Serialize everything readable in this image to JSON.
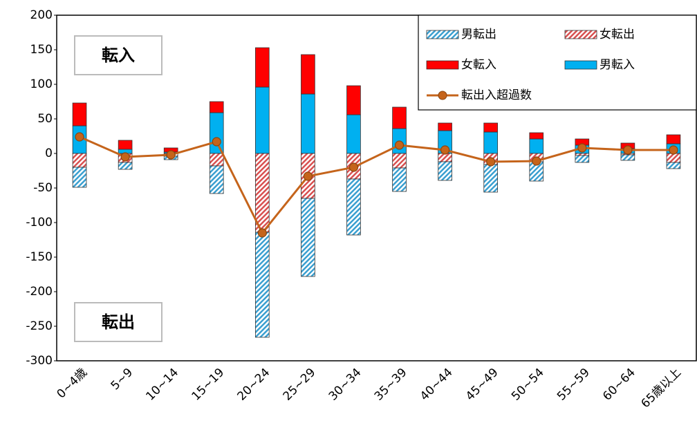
{
  "chart_data": {
    "type": "bar",
    "categories": [
      "0~4歳",
      "5~9",
      "10~14",
      "15~19",
      "20~24",
      "25~29",
      "30~34",
      "35~39",
      "40~44",
      "45~49",
      "50~54",
      "55~59",
      "60~64",
      "65歳以上"
    ],
    "series": [
      {
        "name": "男転出",
        "color": "#3a9fd0",
        "hatched": true,
        "values": [
          -29,
          -10,
          -5,
          -40,
          -152,
          -113,
          -81,
          -34,
          -27,
          -40,
          -28,
          -10,
          -8,
          -9
        ]
      },
      {
        "name": "女転出",
        "color": "#d85050",
        "hatched": true,
        "values": [
          -20,
          -13,
          -4,
          -18,
          -114,
          -65,
          -37,
          -21,
          -12,
          -16,
          -12,
          -3,
          -2,
          -13
        ]
      },
      {
        "name": "女転入",
        "color": "#ff0000",
        "values": [
          33,
          13,
          6,
          16,
          57,
          57,
          42,
          31,
          11,
          13,
          9,
          9,
          8,
          13
        ]
      },
      {
        "name": "男転入",
        "color": "#00b0f0",
        "values": [
          40,
          6,
          2,
          59,
          96,
          86,
          56,
          36,
          33,
          31,
          21,
          12,
          7,
          14
        ]
      },
      {
        "name": "転出入超過数",
        "type": "line",
        "color": "#c5641b",
        "values": [
          24,
          -5,
          -2,
          17,
          -115,
          -33,
          -20,
          12,
          5,
          -12,
          -11,
          8,
          5,
          5
        ]
      }
    ],
    "annotations": [
      "転入",
      "転出"
    ],
    "ylim": [
      -300,
      200
    ],
    "yticks": [
      -300,
      -250,
      -200,
      -150,
      -100,
      -50,
      0,
      50,
      100,
      150,
      200
    ],
    "legend": "top-right"
  }
}
